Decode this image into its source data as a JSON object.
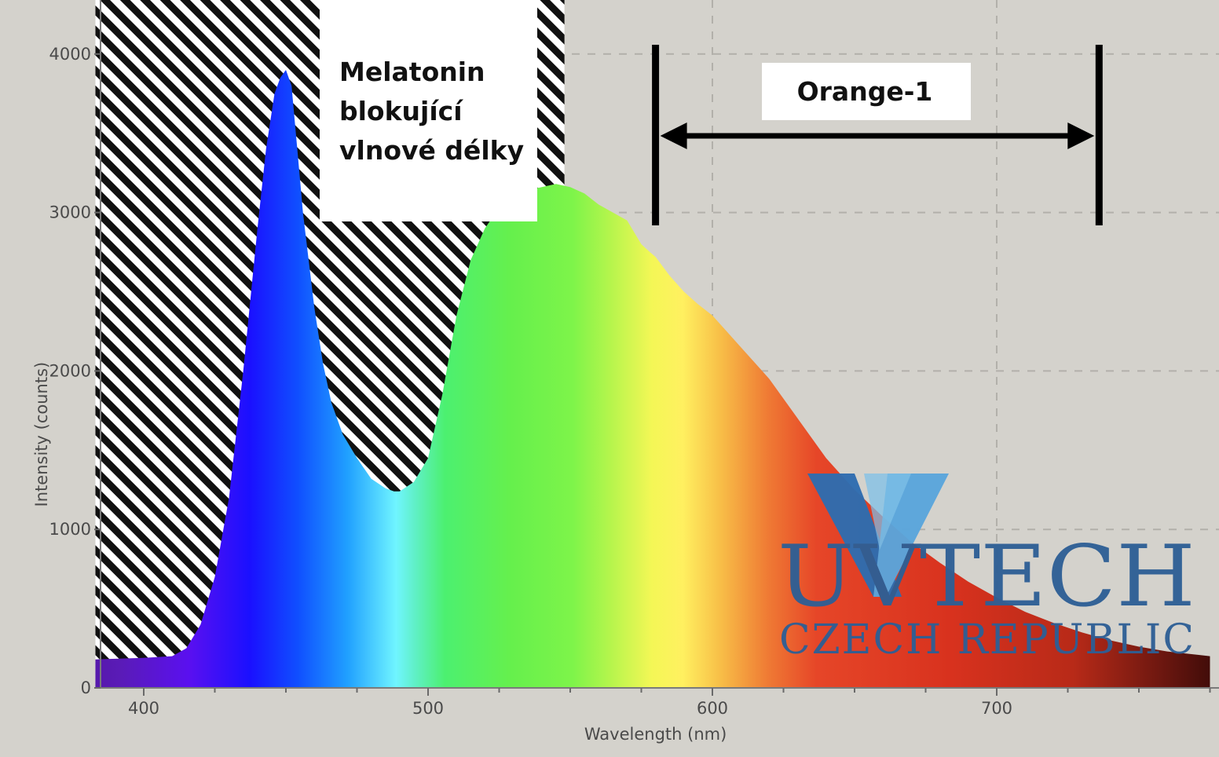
{
  "chart_data": {
    "type": "area",
    "xlabel": "Wavelength (nm)",
    "ylabel": "Intensity (counts)",
    "xlim": [
      383,
      775
    ],
    "ylim": [
      0,
      4250
    ],
    "x_ticks": [
      400,
      500,
      600,
      700
    ],
    "y_ticks": [
      0,
      1000,
      2000,
      3000,
      4000
    ],
    "grid": "dashed",
    "series": [
      {
        "x": [
          383,
          400,
          410,
          415,
          420,
          425,
          430,
          435,
          440,
          443,
          446,
          448,
          450,
          452,
          454,
          456,
          460,
          463,
          466,
          470,
          475,
          480,
          485,
          488,
          490,
          495,
          500,
          505,
          510,
          515,
          520,
          525,
          530,
          535,
          540,
          545,
          550,
          555,
          560,
          565,
          570,
          575,
          578,
          580,
          585,
          590,
          595,
          600,
          605,
          610,
          615,
          620,
          630,
          640,
          650,
          660,
          670,
          680,
          690,
          700,
          710,
          720,
          730,
          740,
          750,
          760,
          775
        ],
        "y": [
          180,
          190,
          200,
          250,
          400,
          700,
          1200,
          2000,
          2900,
          3400,
          3750,
          3850,
          3900,
          3800,
          3400,
          3000,
          2400,
          2050,
          1800,
          1600,
          1450,
          1320,
          1260,
          1240,
          1240,
          1300,
          1450,
          1850,
          2350,
          2700,
          2900,
          3030,
          3100,
          3140,
          3160,
          3180,
          3160,
          3120,
          3050,
          3000,
          2950,
          2800,
          2750,
          2720,
          2600,
          2500,
          2420,
          2350,
          2250,
          2150,
          2050,
          1950,
          1700,
          1450,
          1250,
          1080,
          920,
          790,
          670,
          570,
          480,
          410,
          350,
          300,
          260,
          230,
          200
        ]
      }
    ],
    "annotations": {
      "blocked_label": [
        "Melatonin",
        "blokující",
        "vlnové délky"
      ],
      "blocked_range": [
        383,
        548
      ],
      "filter_label": "Orange-1",
      "filter_range": [
        580,
        736
      ]
    }
  },
  "logo": {
    "line1": "UVTECH",
    "line2": "CZECH REPUBLIC",
    "color": "#2e5f95",
    "accent": "#4f9bd4"
  },
  "colors": {
    "background": "#d4d2cc",
    "grid": "#b2b0aa"
  }
}
